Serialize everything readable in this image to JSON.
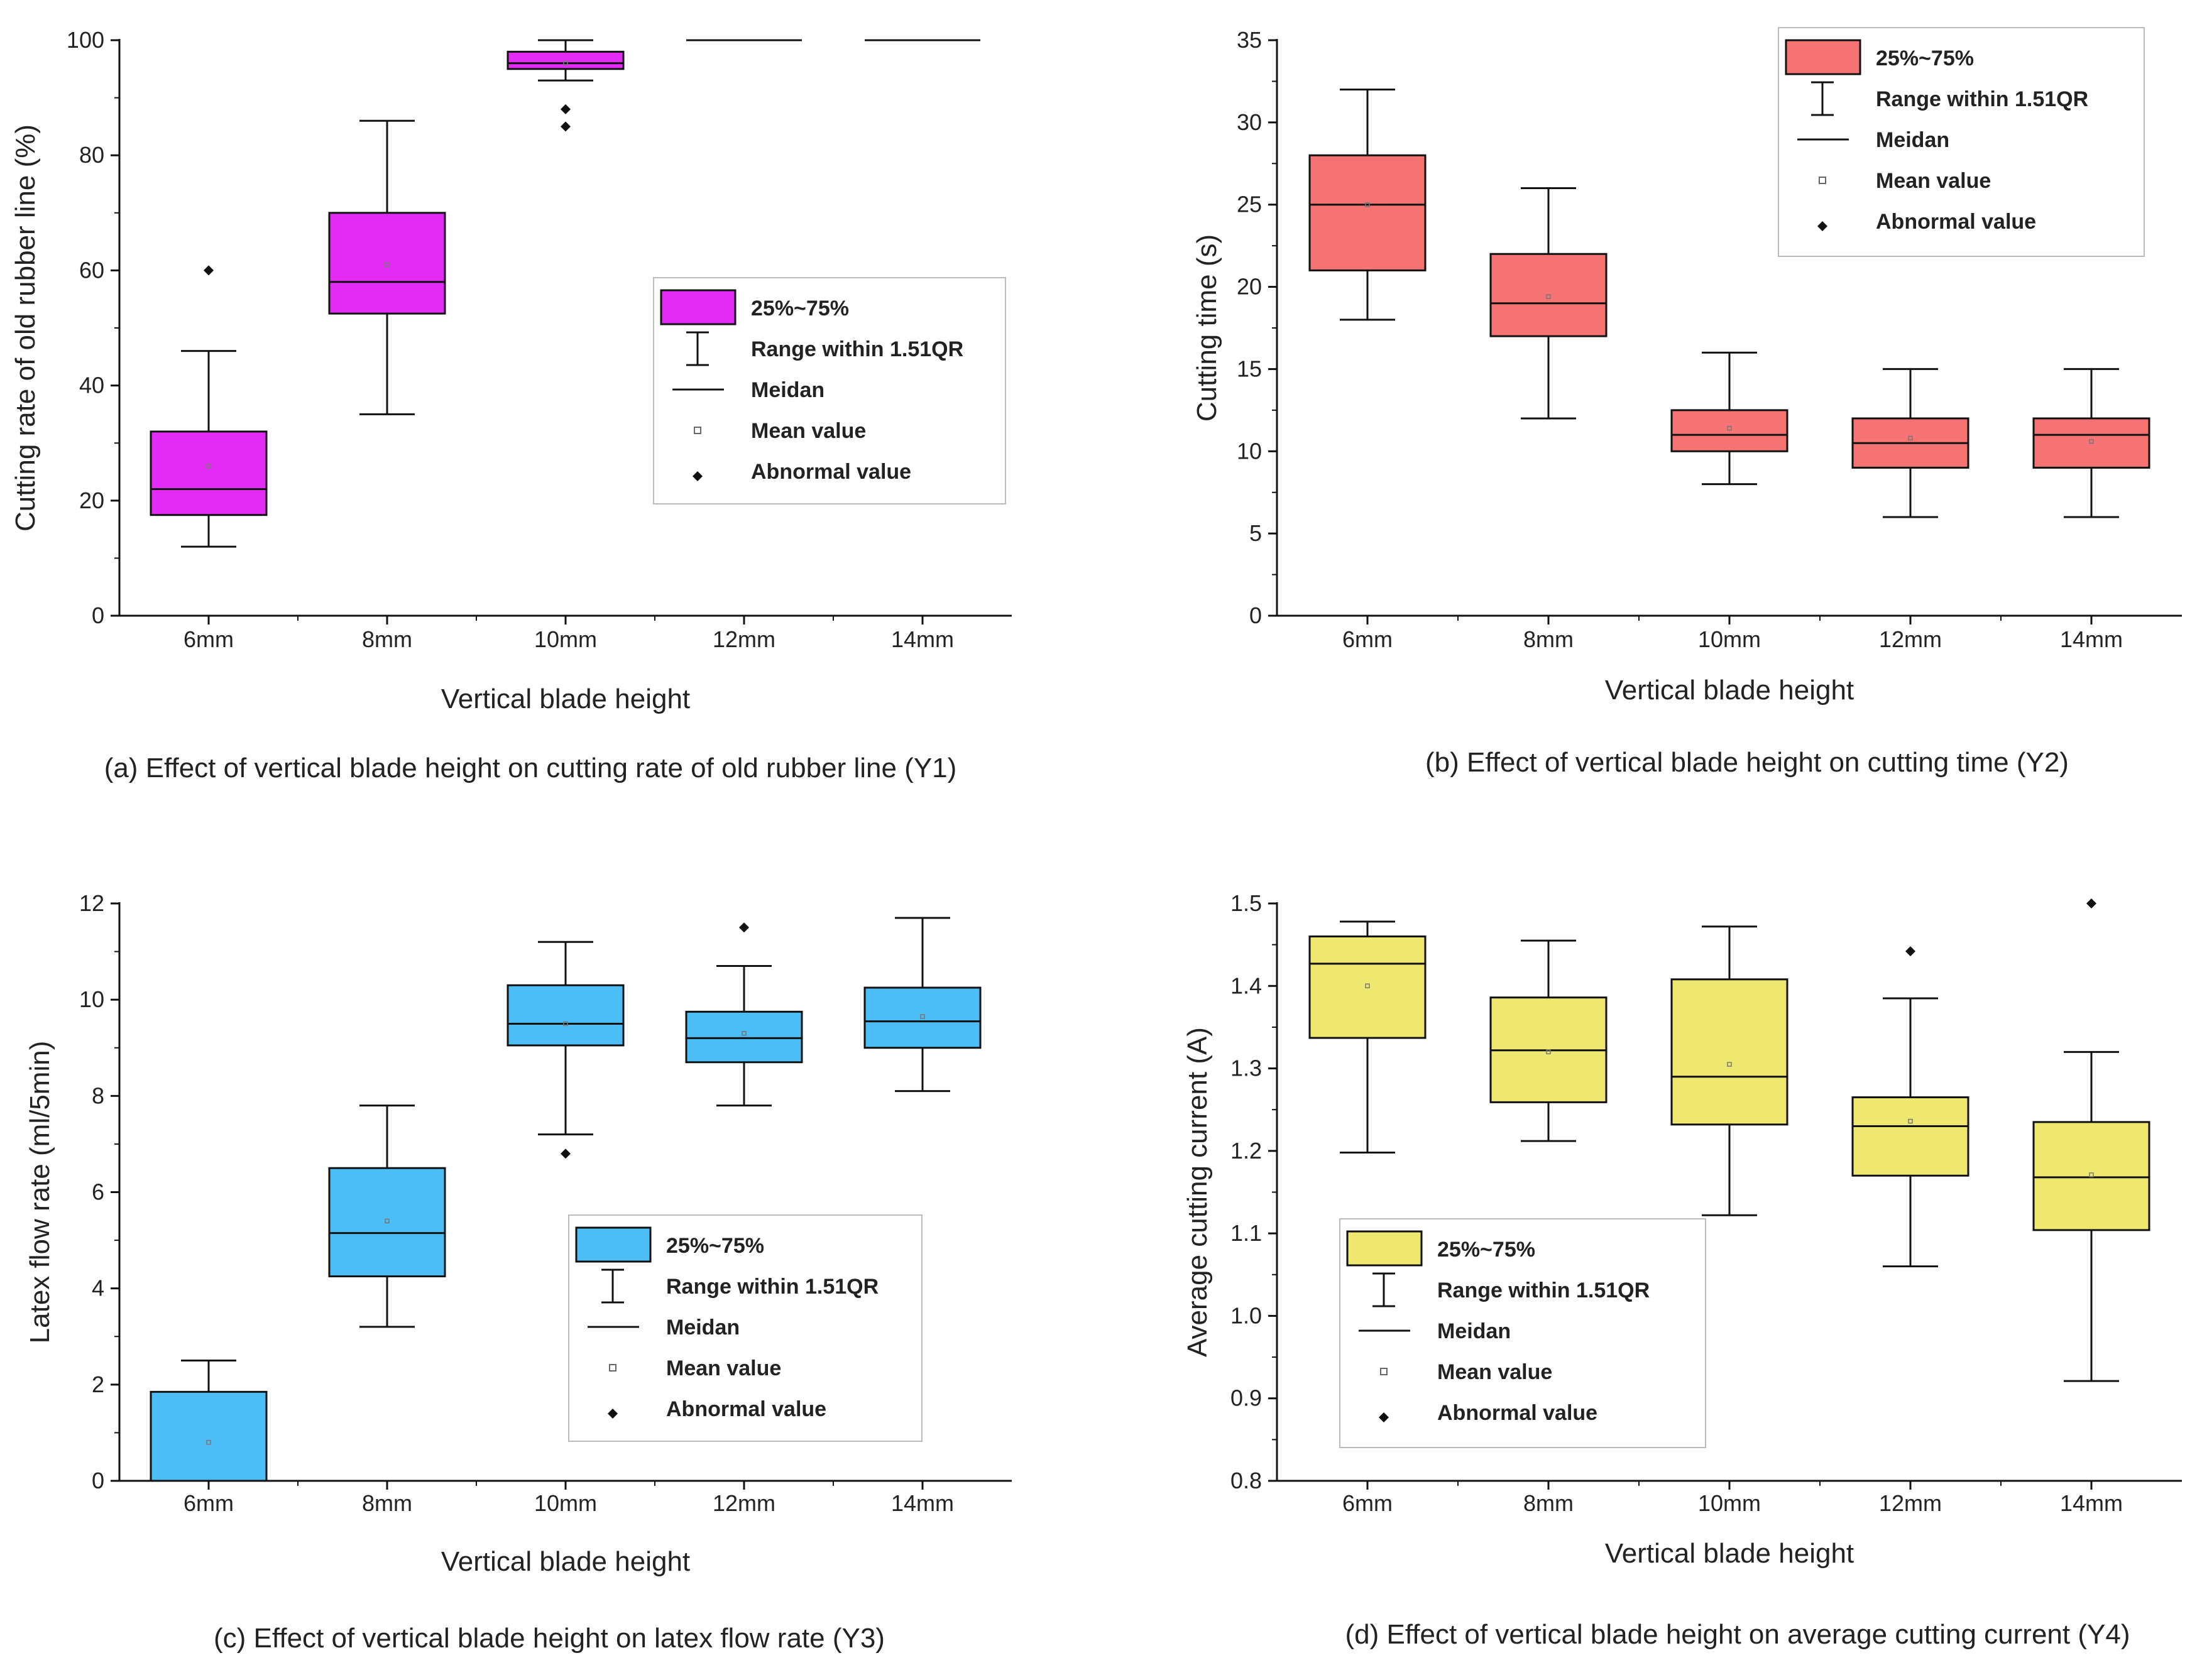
{
  "chart_data": [
    {
      "type": "boxplot",
      "caption": "(a) Effect of  vertical blade height on cutting rate of old rubber line (Y1)",
      "xlabel": "Vertical blade height",
      "ylabel": "Cutting rate of old rubber line (%)",
      "ylim": [
        0,
        100
      ],
      "yticks": [
        "0",
        "20",
        "40",
        "60",
        "80",
        "100"
      ],
      "categories": [
        "6mm",
        "8mm",
        "10mm",
        "12mm",
        "14mm"
      ],
      "fill": "#E22BF5",
      "legend_position": "center-right",
      "boxes": [
        {
          "min": 12,
          "q1": 17.5,
          "median": 22,
          "q3": 32,
          "max": 46,
          "mean": 26,
          "outliers": [
            60
          ]
        },
        {
          "min": 35,
          "q1": 52.5,
          "median": 58,
          "q3": 70,
          "max": 86,
          "mean": 61,
          "outliers": []
        },
        {
          "min": 93,
          "q1": 95,
          "median": 96,
          "q3": 98,
          "max": 100,
          "mean": 96,
          "outliers": [
            85,
            88
          ]
        },
        {
          "min": 100,
          "q1": 100,
          "median": 100,
          "q3": 100,
          "max": 100,
          "mean": 100,
          "outliers": []
        },
        {
          "min": 100,
          "q1": 100,
          "median": 100,
          "q3": 100,
          "max": 100,
          "mean": 100,
          "outliers": []
        }
      ]
    },
    {
      "type": "boxplot",
      "caption": "(b) Effect of  vertical blade height on cutting time (Y2)",
      "xlabel": "Vertical blade height",
      "ylabel": "Cutting time (s)",
      "ylim": [
        0,
        35
      ],
      "yticks": [
        "0",
        "5",
        "10",
        "15",
        "20",
        "25",
        "30",
        "35"
      ],
      "categories": [
        "6mm",
        "8mm",
        "10mm",
        "12mm",
        "14mm"
      ],
      "fill": "#F57373",
      "legend_position": "top-right",
      "boxes": [
        {
          "min": 18,
          "q1": 21,
          "median": 25,
          "q3": 28,
          "max": 32,
          "mean": 25,
          "outliers": []
        },
        {
          "min": 12,
          "q1": 17,
          "median": 19,
          "q3": 22,
          "max": 26,
          "mean": 19.4,
          "outliers": []
        },
        {
          "min": 8,
          "q1": 10,
          "median": 11,
          "q3": 12.5,
          "max": 16,
          "mean": 11.4,
          "outliers": []
        },
        {
          "min": 6,
          "q1": 9,
          "median": 10.5,
          "q3": 12,
          "max": 15,
          "mean": 10.8,
          "outliers": []
        },
        {
          "min": 6,
          "q1": 9,
          "median": 11,
          "q3": 12,
          "max": 15,
          "mean": 10.6,
          "outliers": []
        }
      ]
    },
    {
      "type": "boxplot",
      "caption": "(c) Effect of  vertical blade height on latex flow rate (Y3)",
      "xlabel": "Vertical blade height",
      "ylabel": "Latex flow rate (ml/5min)",
      "ylim": [
        0,
        12
      ],
      "yticks": [
        "0",
        "2",
        "4",
        "6",
        "8",
        "10",
        "12"
      ],
      "categories": [
        "6mm",
        "8mm",
        "10mm",
        "12mm",
        "14mm"
      ],
      "fill": "#4DBDF5",
      "legend_position": "center-right",
      "boxes": [
        {
          "min": 0,
          "q1": 0,
          "median": 0,
          "q3": 1.85,
          "max": 2.5,
          "mean": 0.8,
          "outliers": []
        },
        {
          "min": 3.2,
          "q1": 4.25,
          "median": 5.15,
          "q3": 6.5,
          "max": 7.8,
          "mean": 5.4,
          "outliers": []
        },
        {
          "min": 7.2,
          "q1": 9.05,
          "median": 9.5,
          "q3": 10.3,
          "max": 11.2,
          "mean": 9.5,
          "outliers": [
            6.8
          ]
        },
        {
          "min": 7.8,
          "q1": 8.7,
          "median": 9.2,
          "q3": 9.75,
          "max": 10.7,
          "mean": 9.3,
          "outliers": [
            11.5
          ]
        },
        {
          "min": 8.1,
          "q1": 9.0,
          "median": 9.55,
          "q3": 10.25,
          "max": 11.7,
          "mean": 9.65,
          "outliers": []
        }
      ]
    },
    {
      "type": "boxplot",
      "caption": "(d) Effect of  vertical blade height on average cutting current (Y4)",
      "xlabel": "Vertical blade height",
      "ylabel": "Average cutting current (A)",
      "ylim": [
        0.8,
        1.5
      ],
      "yticks": [
        "0.8",
        "0.9",
        "1.0",
        "1.1",
        "1.2",
        "1.3",
        "1.4",
        "1.5"
      ],
      "categories": [
        "6mm",
        "8mm",
        "10mm",
        "12mm",
        "14mm"
      ],
      "fill": "#EEE870",
      "legend_position": "bottom-left",
      "boxes": [
        {
          "min": 1.198,
          "q1": 1.337,
          "median": 1.427,
          "q3": 1.46,
          "max": 1.478,
          "mean": 1.4,
          "outliers": []
        },
        {
          "min": 1.212,
          "q1": 1.259,
          "median": 1.322,
          "q3": 1.386,
          "max": 1.455,
          "mean": 1.32,
          "outliers": []
        },
        {
          "min": 1.122,
          "q1": 1.232,
          "median": 1.29,
          "q3": 1.408,
          "max": 1.472,
          "mean": 1.305,
          "outliers": []
        },
        {
          "min": 1.06,
          "q1": 1.17,
          "median": 1.23,
          "q3": 1.265,
          "max": 1.385,
          "mean": 1.236,
          "outliers": [
            1.442
          ]
        },
        {
          "min": 0.921,
          "q1": 1.104,
          "median": 1.168,
          "q3": 1.235,
          "max": 1.32,
          "mean": 1.171,
          "outliers": [
            1.5
          ]
        }
      ]
    }
  ],
  "legend": {
    "box_label": "25%~75%",
    "range_label": "Range within 1.51QR",
    "median_label": "Meidan",
    "mean_label": "Mean value",
    "outlier_label": "Abnormal  value"
  }
}
